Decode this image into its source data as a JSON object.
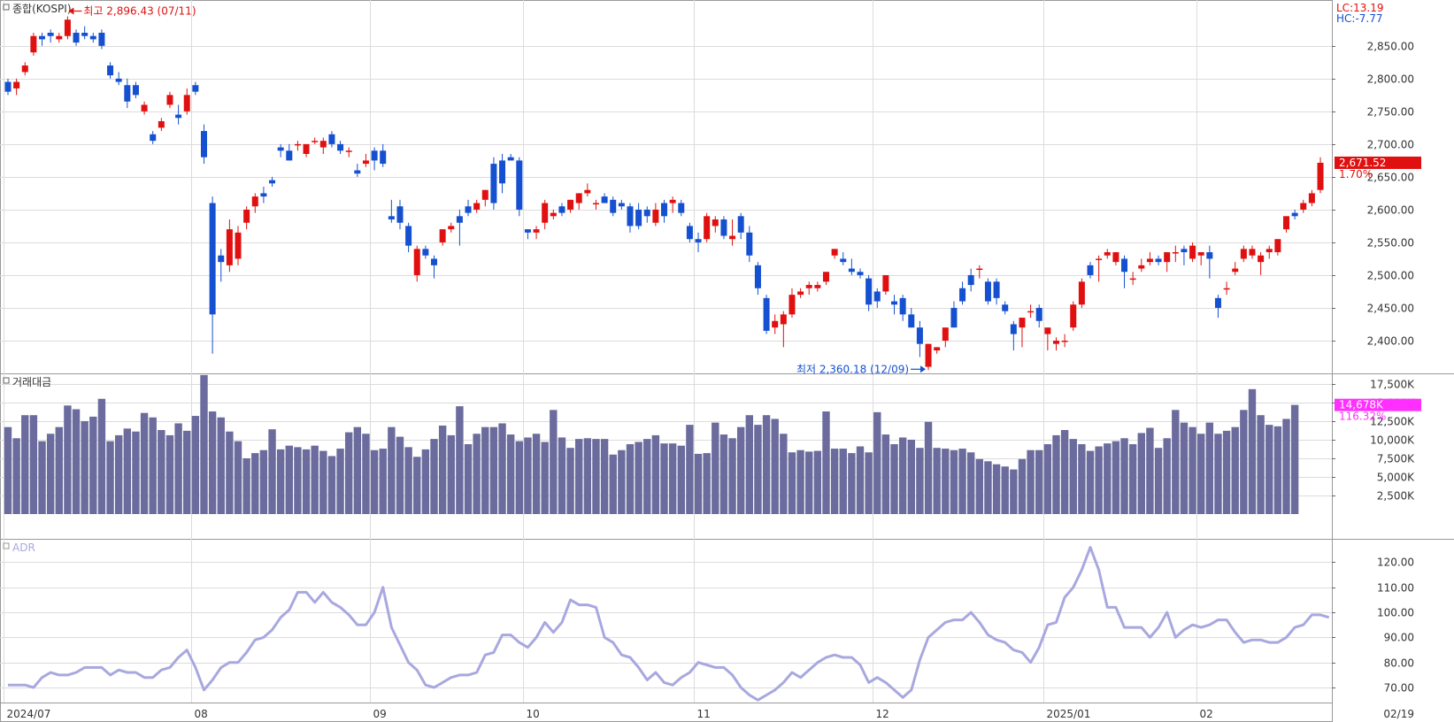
{
  "main_panel": {
    "title": "종합(KOSPI)",
    "lc_label": "LC:13.19",
    "hc_label": "HC:-7.77",
    "high_annotation": "최고 2,896.43 (07/11)",
    "low_annotation": "최저 2,360.18 (12/09)",
    "last_price_label": "2,671.52",
    "last_change_label": "1.70%"
  },
  "volume_panel": {
    "title": "거래대금",
    "last_value_label": "14,678K",
    "last_ratio_label": "116.32%"
  },
  "adr_panel": {
    "title": "ADR"
  },
  "x_axis": {
    "labels": [
      {
        "text": "2024/07",
        "index": 0
      },
      {
        "text": "08",
        "index": 22
      },
      {
        "text": "09",
        "index": 43
      },
      {
        "text": "10",
        "index": 61
      },
      {
        "text": "11",
        "index": 81
      },
      {
        "text": "12",
        "index": 102
      },
      {
        "text": "2025/01",
        "index": 122
      },
      {
        "text": "02",
        "index": 140
      }
    ],
    "end_label": "02/19"
  },
  "colors": {
    "up": "#e01010",
    "down": "#1550d0",
    "volume": "#6b6b9d",
    "adr": "#a8a8e0",
    "grid": "#dcdcdc",
    "border": "#999999",
    "price_box": "#e01010",
    "volume_box": "#ff30ff"
  },
  "chart_data": [
    {
      "type": "candlestick",
      "title": "종합(KOSPI)",
      "ylim": [
        2350,
        2920
      ],
      "y_ticks": [
        "2,400.00",
        "2,450.00",
        "2,500.00",
        "2,550.00",
        "2,600.00",
        "2,650.00",
        "2,700.00",
        "2,750.00",
        "2,800.00",
        "2,850.00"
      ],
      "y_tick_values": [
        2400,
        2450,
        2500,
        2550,
        2600,
        2650,
        2700,
        2750,
        2800,
        2850
      ],
      "candles": [
        [
          2795,
          2800,
          2775,
          2780
        ],
        [
          2785,
          2800,
          2775,
          2795
        ],
        [
          2810,
          2825,
          2805,
          2820
        ],
        [
          2840,
          2870,
          2835,
          2865
        ],
        [
          2865,
          2870,
          2850,
          2860
        ],
        [
          2870,
          2875,
          2855,
          2865
        ],
        [
          2860,
          2870,
          2855,
          2865
        ],
        [
          2865,
          2895,
          2860,
          2890
        ],
        [
          2870,
          2875,
          2850,
          2855
        ],
        [
          2870,
          2880,
          2860,
          2865
        ],
        [
          2865,
          2870,
          2855,
          2860
        ],
        [
          2870,
          2875,
          2845,
          2850
        ],
        [
          2820,
          2825,
          2800,
          2805
        ],
        [
          2800,
          2810,
          2790,
          2795
        ],
        [
          2790,
          2800,
          2755,
          2765
        ],
        [
          2790,
          2795,
          2770,
          2775
        ],
        [
          2750,
          2765,
          2745,
          2760
        ],
        [
          2715,
          2720,
          2700,
          2705
        ],
        [
          2725,
          2740,
          2720,
          2735
        ],
        [
          2760,
          2780,
          2755,
          2775
        ],
        [
          2745,
          2760,
          2730,
          2740
        ],
        [
          2750,
          2785,
          2745,
          2775
        ],
        [
          2790,
          2795,
          2775,
          2780
        ],
        [
          2720,
          2730,
          2670,
          2680
        ],
        [
          2610,
          2620,
          2380,
          2440
        ],
        [
          2530,
          2540,
          2490,
          2520
        ],
        [
          2515,
          2585,
          2505,
          2570
        ],
        [
          2525,
          2575,
          2515,
          2565
        ],
        [
          2580,
          2605,
          2570,
          2600
        ],
        [
          2605,
          2625,
          2595,
          2620
        ],
        [
          2625,
          2635,
          2610,
          2620
        ],
        [
          2645,
          2650,
          2635,
          2640
        ],
        [
          2695,
          2700,
          2680,
          2690
        ],
        [
          2690,
          2700,
          2675,
          2675
        ],
        [
          2700,
          2705,
          2690,
          2700
        ],
        [
          2685,
          2700,
          2680,
          2700
        ],
        [
          2705,
          2710,
          2700,
          2705
        ],
        [
          2695,
          2710,
          2685,
          2705
        ],
        [
          2715,
          2720,
          2695,
          2700
        ],
        [
          2700,
          2705,
          2685,
          2690
        ],
        [
          2690,
          2695,
          2680,
          2690
        ],
        [
          2660,
          2670,
          2650,
          2655
        ],
        [
          2670,
          2685,
          2665,
          2675
        ],
        [
          2690,
          2695,
          2660,
          2675
        ],
        [
          2690,
          2700,
          2665,
          2670
        ],
        [
          2590,
          2615,
          2580,
          2585
        ],
        [
          2605,
          2615,
          2570,
          2580
        ],
        [
          2575,
          2580,
          2535,
          2545
        ],
        [
          2500,
          2545,
          2490,
          2540
        ],
        [
          2540,
          2545,
          2525,
          2530
        ],
        [
          2525,
          2530,
          2495,
          2515
        ],
        [
          2550,
          2570,
          2545,
          2570
        ],
        [
          2570,
          2580,
          2565,
          2575
        ],
        [
          2590,
          2600,
          2545,
          2580
        ],
        [
          2605,
          2615,
          2590,
          2595
        ],
        [
          2600,
          2615,
          2595,
          2610
        ],
        [
          2615,
          2630,
          2605,
          2630
        ],
        [
          2670,
          2680,
          2600,
          2610
        ],
        [
          2675,
          2685,
          2625,
          2640
        ],
        [
          2680,
          2685,
          2675,
          2675
        ],
        [
          2675,
          2680,
          2590,
          2600
        ],
        [
          2570,
          2570,
          2555,
          2565
        ],
        [
          2565,
          2575,
          2555,
          2570
        ],
        [
          2580,
          2615,
          2570,
          2610
        ],
        [
          2590,
          2600,
          2585,
          2595
        ],
        [
          2605,
          2610,
          2590,
          2595
        ],
        [
          2600,
          2615,
          2595,
          2615
        ],
        [
          2610,
          2625,
          2600,
          2625
        ],
        [
          2625,
          2640,
          2620,
          2630
        ],
        [
          2610,
          2615,
          2600,
          2610
        ],
        [
          2620,
          2625,
          2610,
          2610
        ],
        [
          2615,
          2620,
          2590,
          2595
        ],
        [
          2610,
          2615,
          2600,
          2605
        ],
        [
          2605,
          2610,
          2565,
          2575
        ],
        [
          2600,
          2610,
          2570,
          2575
        ],
        [
          2600,
          2605,
          2580,
          2590
        ],
        [
          2580,
          2610,
          2575,
          2600
        ],
        [
          2610,
          2615,
          2580,
          2590
        ],
        [
          2610,
          2620,
          2595,
          2615
        ],
        [
          2610,
          2615,
          2590,
          2595
        ],
        [
          2575,
          2580,
          2550,
          2555
        ],
        [
          2555,
          2565,
          2535,
          2550
        ],
        [
          2555,
          2595,
          2550,
          2590
        ],
        [
          2575,
          2590,
          2565,
          2585
        ],
        [
          2585,
          2590,
          2555,
          2560
        ],
        [
          2555,
          2585,
          2545,
          2560
        ],
        [
          2590,
          2595,
          2555,
          2565
        ],
        [
          2565,
          2575,
          2520,
          2530
        ],
        [
          2515,
          2520,
          2470,
          2480
        ],
        [
          2465,
          2470,
          2410,
          2415
        ],
        [
          2420,
          2440,
          2410,
          2430
        ],
        [
          2425,
          2445,
          2390,
          2440
        ],
        [
          2440,
          2480,
          2435,
          2470
        ],
        [
          2470,
          2480,
          2465,
          2475
        ],
        [
          2480,
          2490,
          2470,
          2485
        ],
        [
          2480,
          2490,
          2475,
          2485
        ],
        [
          2490,
          2505,
          2485,
          2505
        ],
        [
          2530,
          2540,
          2525,
          2540
        ],
        [
          2525,
          2535,
          2515,
          2520
        ],
        [
          2510,
          2525,
          2500,
          2505
        ],
        [
          2505,
          2510,
          2495,
          2500
        ],
        [
          2495,
          2500,
          2445,
          2455
        ],
        [
          2475,
          2480,
          2450,
          2460
        ],
        [
          2475,
          2500,
          2470,
          2500
        ],
        [
          2460,
          2470,
          2440,
          2455
        ],
        [
          2465,
          2470,
          2430,
          2440
        ],
        [
          2440,
          2450,
          2420,
          2420
        ],
        [
          2420,
          2430,
          2375,
          2395
        ],
        [
          2360,
          2395,
          2355,
          2395
        ],
        [
          2385,
          2390,
          2380,
          2390
        ],
        [
          2400,
          2420,
          2390,
          2420
        ],
        [
          2450,
          2460,
          2420,
          2420
        ],
        [
          2480,
          2490,
          2455,
          2460
        ],
        [
          2500,
          2510,
          2475,
          2485
        ],
        [
          2510,
          2515,
          2495,
          2510
        ],
        [
          2490,
          2495,
          2455,
          2460
        ],
        [
          2490,
          2495,
          2455,
          2465
        ],
        [
          2455,
          2460,
          2440,
          2445
        ],
        [
          2425,
          2430,
          2385,
          2410
        ],
        [
          2420,
          2435,
          2390,
          2435
        ],
        [
          2445,
          2455,
          2435,
          2445
        ],
        [
          2450,
          2455,
          2420,
          2430
        ],
        [
          2410,
          2415,
          2385,
          2420
        ],
        [
          2395,
          2405,
          2385,
          2400
        ],
        [
          2400,
          2410,
          2390,
          2400
        ],
        [
          2420,
          2460,
          2415,
          2455
        ],
        [
          2455,
          2495,
          2450,
          2490
        ],
        [
          2515,
          2520,
          2495,
          2500
        ],
        [
          2525,
          2530,
          2490,
          2525
        ],
        [
          2530,
          2540,
          2525,
          2535
        ],
        [
          2520,
          2535,
          2515,
          2535
        ],
        [
          2525,
          2530,
          2480,
          2505
        ],
        [
          2495,
          2505,
          2485,
          2495
        ],
        [
          2510,
          2525,
          2505,
          2515
        ],
        [
          2520,
          2535,
          2515,
          2525
        ],
        [
          2525,
          2530,
          2515,
          2520
        ],
        [
          2520,
          2535,
          2505,
          2535
        ],
        [
          2535,
          2545,
          2520,
          2535
        ],
        [
          2540,
          2545,
          2515,
          2535
        ],
        [
          2525,
          2550,
          2520,
          2545
        ],
        [
          2530,
          2535,
          2515,
          2535
        ],
        [
          2535,
          2545,
          2495,
          2525
        ],
        [
          2465,
          2470,
          2435,
          2450
        ],
        [
          2480,
          2490,
          2470,
          2480
        ],
        [
          2505,
          2520,
          2500,
          2510
        ],
        [
          2525,
          2545,
          2520,
          2540
        ],
        [
          2530,
          2545,
          2525,
          2540
        ],
        [
          2520,
          2535,
          2500,
          2530
        ],
        [
          2535,
          2545,
          2525,
          2540
        ],
        [
          2535,
          2555,
          2530,
          2555
        ],
        [
          2570,
          2590,
          2565,
          2590
        ],
        [
          2595,
          2600,
          2585,
          2590
        ],
        [
          2600,
          2615,
          2595,
          2610
        ],
        [
          2610,
          2630,
          2605,
          2625
        ],
        [
          2630,
          2680,
          2625,
          2671.52
        ]
      ]
    },
    {
      "type": "bar",
      "title": "거래대금",
      "ylim": [
        0,
        18800
      ],
      "y_ticks": [
        "2,500K",
        "5,000K",
        "7,500K",
        "10,000K",
        "12,500K",
        "15,000K",
        "17,500K"
      ],
      "y_tick_values": [
        2500,
        5000,
        7500,
        10000,
        12500,
        15000,
        17500
      ],
      "values": [
        11700,
        10200,
        13300,
        13300,
        9800,
        10800,
        11700,
        14600,
        14100,
        12500,
        13100,
        15500,
        9800,
        10600,
        11500,
        11100,
        13600,
        13000,
        11300,
        10600,
        12200,
        11200,
        13200,
        18700,
        13800,
        13000,
        11100,
        9800,
        7500,
        8200,
        8600,
        11400,
        8700,
        9200,
        9000,
        8700,
        9200,
        8500,
        7800,
        8800,
        11000,
        11700,
        10800,
        8600,
        8800,
        11700,
        10400,
        9000,
        7700,
        8700,
        10100,
        11900,
        10600,
        14500,
        9400,
        10800,
        11700,
        11700,
        12200,
        10700,
        9800,
        10300,
        10800,
        9700,
        14000,
        10300,
        8900,
        10100,
        10200,
        10100,
        10100,
        8000,
        8600,
        9400,
        9700,
        10100,
        10600,
        9500,
        9500,
        9200,
        12000,
        8100,
        8200,
        12300,
        10700,
        10200,
        11700,
        13300,
        12000,
        13300,
        12800,
        10800,
        8300,
        8600,
        8400,
        8500,
        13800,
        8800,
        8800,
        8200,
        9100,
        8300,
        13700,
        10700,
        9400,
        10300,
        10000,
        8900,
        12400,
        8900,
        8800,
        8600,
        8800,
        8300,
        7400,
        7100,
        6700,
        6400,
        6000,
        7400,
        8600,
        8600,
        9400,
        10600,
        11300,
        10100,
        9400,
        8500,
        9100,
        9500,
        9800,
        10200,
        9400,
        10900,
        11600,
        8900,
        10200,
        14000,
        12300,
        11700,
        10800,
        12300,
        10800,
        11200,
        11700,
        14000,
        16800,
        13300,
        12000,
        11800,
        12800,
        14678
      ]
    },
    {
      "type": "line",
      "title": "ADR",
      "ylim": [
        64,
        129
      ],
      "y_ticks": [
        "70.00",
        "80.00",
        "90.00",
        "100.00",
        "110.00",
        "120.00"
      ],
      "y_tick_values": [
        70,
        80,
        90,
        100,
        110,
        120
      ],
      "values": [
        71,
        71,
        71,
        70,
        74,
        76,
        75,
        75,
        76,
        78,
        78,
        78,
        75,
        77,
        76,
        76,
        74,
        74,
        77,
        78,
        82,
        85,
        78,
        69,
        73,
        78,
        80,
        80,
        84,
        89,
        90,
        93,
        98,
        101,
        108,
        108,
        104,
        108,
        104,
        102,
        99,
        95,
        95,
        100,
        110,
        94,
        87,
        80,
        77,
        71,
        70,
        72,
        74,
        75,
        75,
        76,
        83,
        84,
        91,
        91,
        88,
        86,
        90,
        96,
        92,
        96,
        105,
        103,
        103,
        102,
        90,
        88,
        83,
        82,
        78,
        73,
        76,
        72,
        71,
        74,
        76,
        80,
        79,
        78,
        78,
        75,
        70,
        67,
        65,
        67,
        69,
        72,
        76,
        74,
        77,
        80,
        82,
        83,
        82,
        82,
        79,
        72,
        74,
        72,
        69,
        66,
        69,
        81,
        90,
        93,
        96,
        97,
        97,
        100,
        96,
        91,
        89,
        88,
        85,
        84,
        80,
        86,
        95,
        96,
        106,
        110,
        117,
        126,
        117,
        102,
        102,
        94,
        94,
        94,
        90,
        94,
        100,
        90,
        93,
        95,
        94,
        95,
        97,
        97,
        92,
        88,
        89,
        89,
        88,
        88,
        90,
        94,
        95,
        99,
        99,
        98
      ]
    }
  ]
}
